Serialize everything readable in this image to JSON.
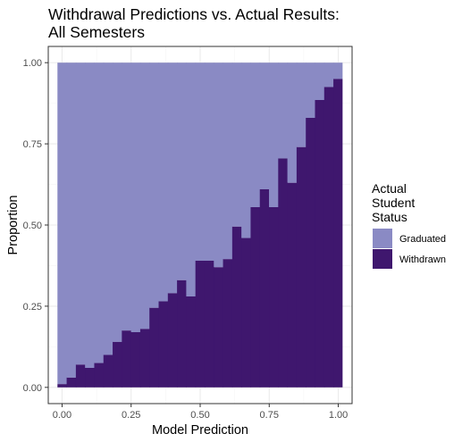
{
  "chart_data": {
    "type": "bar",
    "subtype": "stacked-proportion-histogram",
    "title_lines": [
      "Withdrawal Predictions vs. Actual Results:",
      "All Semesters"
    ],
    "xlabel": "Model Prediction",
    "ylabel": "Proportion",
    "xlim": [
      -0.05,
      1.05
    ],
    "ylim": [
      -0.05,
      1.05
    ],
    "x_ticks": [
      0.0,
      0.25,
      0.5,
      0.75,
      1.0
    ],
    "x_tick_labels": [
      "0.00",
      "0.25",
      "0.50",
      "0.75",
      "1.00"
    ],
    "y_ticks": [
      0.0,
      0.25,
      0.5,
      0.75,
      1.0
    ],
    "y_tick_labels": [
      "0.00",
      "0.25",
      "0.50",
      "0.75",
      "1.00"
    ],
    "grid": true,
    "bin_width": 0.0333,
    "bin_start": -0.0167,
    "x": [
      0.0,
      0.0333,
      0.0667,
      0.1,
      0.1333,
      0.1667,
      0.2,
      0.2333,
      0.2667,
      0.3,
      0.3333,
      0.3667,
      0.4,
      0.4333,
      0.4667,
      0.5,
      0.5333,
      0.5667,
      0.6,
      0.6333,
      0.6667,
      0.7,
      0.7333,
      0.7667,
      0.8,
      0.8333,
      0.8667,
      0.9,
      0.9333,
      0.9667,
      1.0
    ],
    "series": [
      {
        "name": "Withdrawn",
        "color": "#3f176e",
        "values": [
          0.01,
          0.03,
          0.07,
          0.06,
          0.075,
          0.1,
          0.14,
          0.175,
          0.17,
          0.18,
          0.245,
          0.265,
          0.29,
          0.33,
          0.28,
          0.39,
          0.39,
          0.37,
          0.395,
          0.495,
          0.46,
          0.555,
          0.61,
          0.555,
          0.705,
          0.63,
          0.74,
          0.83,
          0.885,
          0.925,
          0.95
        ]
      },
      {
        "name": "Graduated",
        "color": "#8a8ac4",
        "values": [
          0.99,
          0.97,
          0.93,
          0.94,
          0.925,
          0.9,
          0.86,
          0.825,
          0.83,
          0.82,
          0.755,
          0.735,
          0.71,
          0.67,
          0.72,
          0.61,
          0.61,
          0.63,
          0.605,
          0.505,
          0.54,
          0.445,
          0.39,
          0.445,
          0.295,
          0.37,
          0.26,
          0.17,
          0.115,
          0.075,
          0.05
        ]
      }
    ],
    "legend": {
      "title_lines": [
        "Actual",
        "Student",
        "Status"
      ],
      "placement": "right",
      "items": [
        {
          "label": "Graduated",
          "color": "#8a8ac4"
        },
        {
          "label": "Withdrawn",
          "color": "#3f176e"
        }
      ]
    },
    "colors": {
      "grid_major": "#ebebeb",
      "grid_minor": "#f5f5f5",
      "panel_border": "#333333",
      "tick_text": "#4d4d4d"
    }
  }
}
